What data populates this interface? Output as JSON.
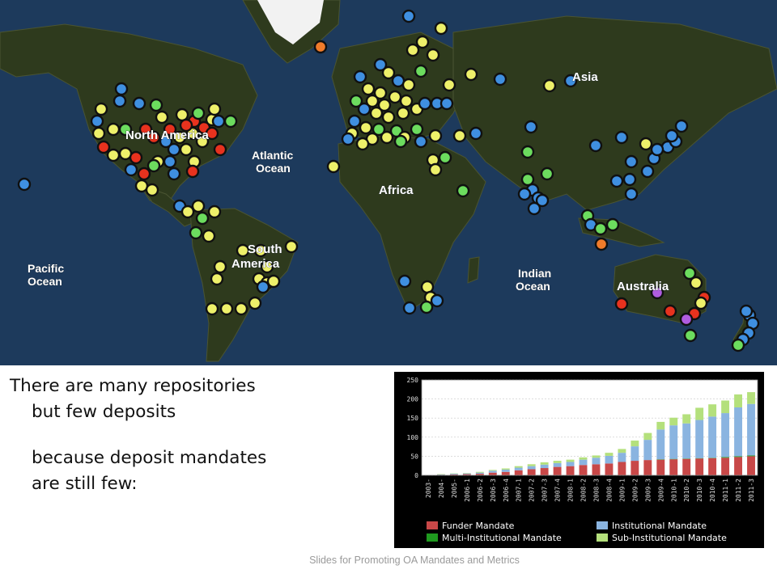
{
  "map": {
    "labels": {
      "north_america": "North America",
      "atlantic_1": "Atlantic",
      "atlantic_2": "Ocean",
      "africa": "Africa",
      "asia": "Asia",
      "south_america_1": "South",
      "south_america_2": "America",
      "pacific_1": "Pacific",
      "pacific_2": "Ocean",
      "indian_1": "Indian",
      "indian_2": "Ocean",
      "australia": "Australia"
    },
    "colors": {
      "ocean": "#1d3a5c",
      "land": "#2e3a1d",
      "blue": "#3f8fe0",
      "yellow": "#eef06a",
      "green": "#6cdc5e",
      "red": "#e8321e",
      "orange": "#f07b2a",
      "purple": "#b05ce0",
      "ice": "#f2f2f2"
    }
  },
  "text": {
    "line1": "There are many repositories",
    "line2": "but few deposits",
    "line3": "because deposit mandates",
    "line4": "are still few:"
  },
  "chart_data": {
    "type": "bar",
    "stacked": true,
    "categories": [
      "2003-",
      "2004-",
      "2005-",
      "2006-1",
      "2006-2",
      "2006-3",
      "2006-4",
      "2007-1",
      "2007-2",
      "2007-3",
      "2007-4",
      "2008-1",
      "2008-2",
      "2008-3",
      "2008-4",
      "2009-1",
      "2009-2",
      "2009-3",
      "2009-4",
      "2010-1",
      "2010-2",
      "2010-3",
      "2010-4",
      "2011-1",
      "2011-2",
      "2011-3"
    ],
    "series": [
      {
        "name": "Funder Mandate",
        "color": "#c84848",
        "values": [
          0,
          1,
          2,
          3,
          4,
          7,
          9,
          13,
          16,
          19,
          22,
          24,
          27,
          29,
          31,
          35,
          38,
          40,
          41,
          42,
          43,
          44,
          45,
          46,
          48,
          50
        ]
      },
      {
        "name": "Multi-Institutional Mandate",
        "color": "#1f9a1f",
        "values": [
          0,
          0,
          0,
          0,
          0,
          0,
          0,
          0,
          0,
          0,
          0,
          0,
          0,
          0,
          0,
          0,
          0,
          0,
          1,
          1,
          1,
          1,
          1,
          2,
          2,
          2
        ]
      },
      {
        "name": "Institutional Mandate",
        "color": "#8ab4e0",
        "values": [
          0,
          1,
          2,
          2,
          3,
          5,
          6,
          7,
          8,
          9,
          10,
          11,
          14,
          17,
          20,
          24,
          38,
          53,
          78,
          88,
          92,
          100,
          108,
          115,
          128,
          135
        ]
      },
      {
        "name": "Sub-Institutional Mandate",
        "color": "#b4e07c",
        "values": [
          0,
          1,
          1,
          1,
          2,
          2,
          3,
          4,
          5,
          6,
          6,
          6,
          6,
          6,
          8,
          10,
          15,
          18,
          20,
          20,
          24,
          32,
          32,
          33,
          34,
          31
        ]
      }
    ],
    "y_ticks": [
      "0",
      "50",
      "100",
      "150",
      "200",
      "250"
    ],
    "ylim": [
      0,
      250
    ],
    "grid": true,
    "legend_placement": "bottom"
  },
  "footer": "Slides for Promoting OA Mandates and Metrics"
}
